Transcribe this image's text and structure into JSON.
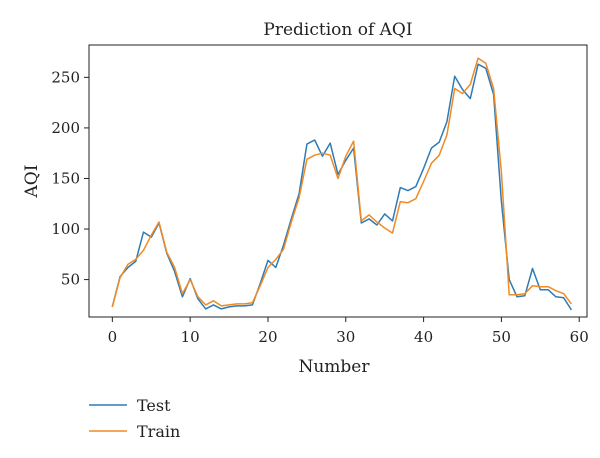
{
  "chart_data": {
    "type": "line",
    "title": "Prediction of AQI",
    "xlabel": "Number",
    "ylabel": "AQI",
    "xlim": [
      -3,
      61
    ],
    "ylim": [
      13,
      282
    ],
    "xticks": [
      0,
      10,
      20,
      30,
      40,
      50,
      60
    ],
    "yticks": [
      50,
      100,
      150,
      200,
      250
    ],
    "grid": false,
    "legend_position": "bottom-left",
    "series": [
      {
        "name": "Test",
        "color": "#2e7bb6",
        "x": [
          0,
          1,
          2,
          3,
          4,
          5,
          6,
          7,
          8,
          9,
          10,
          11,
          12,
          13,
          14,
          15,
          16,
          17,
          18,
          19,
          20,
          21,
          22,
          23,
          24,
          25,
          26,
          27,
          28,
          29,
          30,
          31,
          32,
          33,
          34,
          35,
          36,
          37,
          38,
          39,
          40,
          41,
          42,
          43,
          44,
          45,
          46,
          47,
          48,
          49,
          50,
          51,
          52,
          53,
          54,
          55,
          56,
          57,
          58,
          59
        ],
        "y": [
          23,
          53,
          62,
          68,
          97,
          92,
          106,
          76,
          58,
          33,
          51,
          31,
          21,
          25,
          21,
          23,
          24,
          24,
          25,
          46,
          69,
          62,
          84,
          110,
          135,
          184,
          188,
          172,
          185,
          154,
          168,
          180,
          106,
          110,
          104,
          115,
          108,
          141,
          138,
          142,
          160,
          180,
          186,
          206,
          251,
          238,
          229,
          263,
          259,
          233,
          127,
          50,
          33,
          34,
          61,
          40,
          40,
          33,
          32,
          20
        ]
      },
      {
        "name": "Train",
        "color": "#f08a24",
        "x": [
          0,
          1,
          2,
          3,
          4,
          5,
          6,
          7,
          8,
          9,
          10,
          11,
          12,
          13,
          14,
          15,
          16,
          17,
          18,
          19,
          20,
          21,
          22,
          23,
          24,
          25,
          26,
          27,
          28,
          29,
          30,
          31,
          32,
          33,
          34,
          35,
          36,
          37,
          38,
          39,
          40,
          41,
          42,
          43,
          44,
          45,
          46,
          47,
          48,
          49,
          50,
          51,
          52,
          53,
          54,
          55,
          56,
          57,
          58,
          59
        ],
        "y": [
          23,
          52,
          65,
          70,
          79,
          94,
          107,
          77,
          62,
          36,
          50,
          33,
          25,
          29,
          24,
          25,
          26,
          26,
          27,
          44,
          62,
          70,
          80,
          107,
          131,
          169,
          173,
          175,
          173,
          150,
          172,
          187,
          108,
          114,
          107,
          101,
          96,
          127,
          126,
          130,
          147,
          165,
          173,
          193,
          239,
          234,
          243,
          269,
          264,
          239,
          156,
          35,
          35,
          36,
          44,
          43,
          43,
          39,
          36,
          26
        ]
      }
    ]
  }
}
